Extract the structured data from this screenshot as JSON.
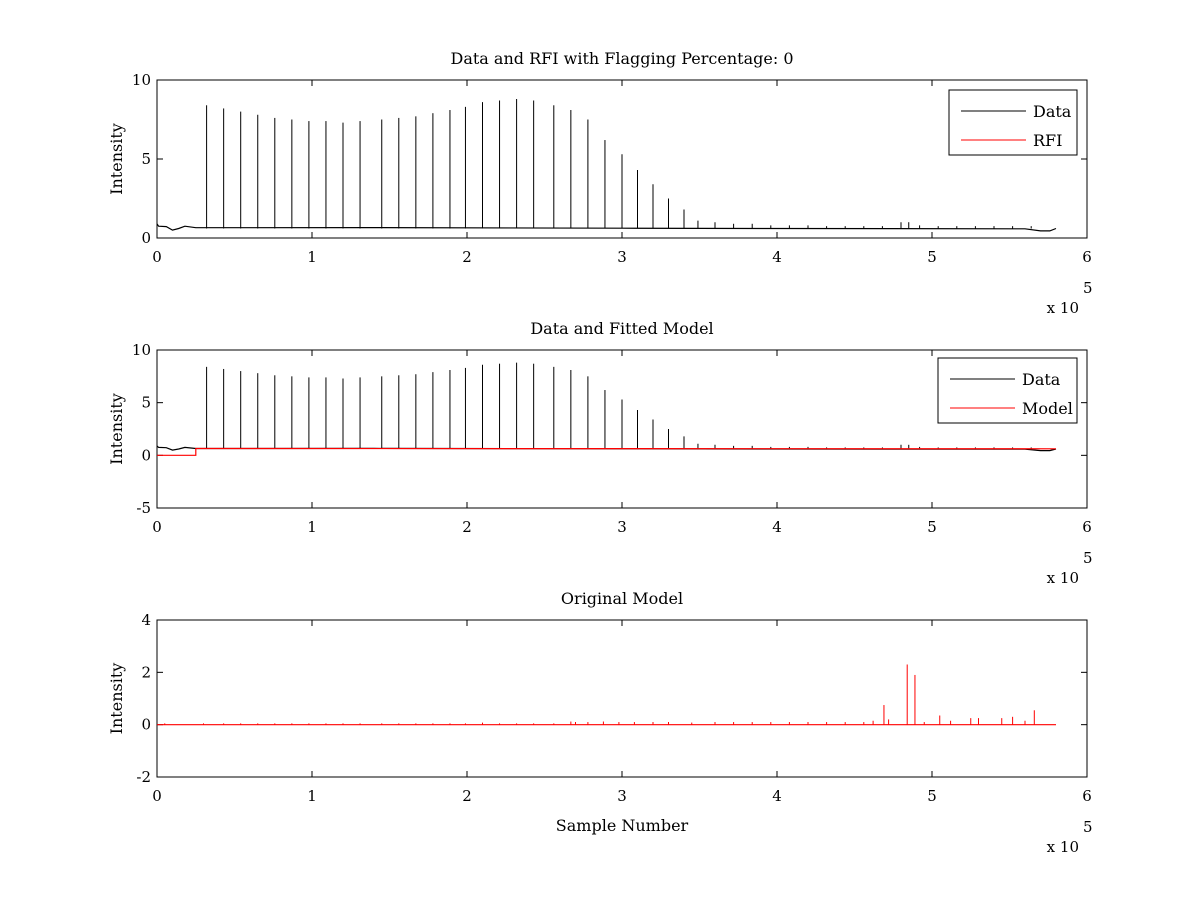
{
  "colors": {
    "background": "#ffffff",
    "axes": "#000000",
    "data_series": "#000000",
    "red_series": "#ff0000"
  },
  "chart_data": [
    {
      "type": "line",
      "title": "Data and RFI with Flagging Percentage: 0",
      "xlabel": "",
      "ylabel": "Intensity",
      "xlim": [
        0,
        6
      ],
      "ylim": [
        0,
        10
      ],
      "x_multiplier_label": "x 10",
      "x_multiplier_exponent": "5",
      "xticks": [
        0,
        1,
        2,
        3,
        4,
        5,
        6
      ],
      "xtick_labels": [
        "0",
        "1",
        "2",
        "3",
        "4",
        "5",
        "6"
      ],
      "yticks": [
        0,
        5,
        10
      ],
      "ytick_labels": [
        "0",
        "5",
        "10"
      ],
      "legend": [
        "Data",
        "RFI"
      ],
      "legend_position": "top-right",
      "baseline": 0.6,
      "baseline_points": [
        [
          0,
          0.9
        ],
        [
          0.01,
          0.75
        ],
        [
          0.06,
          0.72
        ],
        [
          0.1,
          0.5
        ],
        [
          0.14,
          0.6
        ],
        [
          0.18,
          0.75
        ],
        [
          0.25,
          0.65
        ],
        [
          0.3,
          0.65
        ],
        [
          1.4,
          0.66
        ],
        [
          3.0,
          0.62
        ],
        [
          4.0,
          0.6
        ],
        [
          5.6,
          0.58
        ],
        [
          5.7,
          0.45
        ],
        [
          5.76,
          0.45
        ],
        [
          5.8,
          0.6
        ]
      ],
      "series": [
        {
          "name": "Data",
          "color": "#000000",
          "spikes_x": [
            0.32,
            0.43,
            0.54,
            0.65,
            0.76,
            0.87,
            0.98,
            1.09,
            1.2,
            1.31,
            1.45,
            1.56,
            1.67,
            1.78,
            1.89,
            1.99,
            2.1,
            2.21,
            2.32,
            2.43,
            2.56,
            2.67,
            2.78,
            2.89,
            3.0,
            3.1,
            3.2,
            3.3,
            3.4,
            3.49,
            3.6,
            3.72,
            3.84,
            3.96,
            4.08,
            4.2,
            4.32,
            4.44,
            4.56,
            4.68,
            4.8,
            4.85,
            4.92,
            5.04,
            5.16,
            5.28,
            5.4,
            5.52,
            5.64
          ],
          "spikes_y": [
            8.4,
            8.2,
            8.0,
            7.8,
            7.6,
            7.5,
            7.4,
            7.4,
            7.3,
            7.4,
            7.5,
            7.6,
            7.7,
            7.9,
            8.1,
            8.3,
            8.6,
            8.7,
            8.8,
            8.7,
            8.4,
            8.1,
            7.5,
            6.2,
            5.3,
            4.3,
            3.4,
            2.5,
            1.8,
            1.1,
            1.0,
            0.9,
            0.9,
            0.8,
            0.8,
            0.8,
            0.75,
            0.75,
            0.75,
            0.75,
            1.0,
            1.0,
            0.8,
            0.75,
            0.75,
            0.75,
            0.75,
            0.75,
            0.75
          ]
        },
        {
          "name": "RFI",
          "color": "#ff0000",
          "values": []
        }
      ]
    },
    {
      "type": "line",
      "title": "Data and Fitted Model",
      "xlabel": "",
      "ylabel": "Intensity",
      "xlim": [
        0,
        6
      ],
      "ylim": [
        -5,
        10
      ],
      "x_multiplier_label": "x 10",
      "x_multiplier_exponent": "5",
      "xticks": [
        0,
        1,
        2,
        3,
        4,
        5,
        6
      ],
      "xtick_labels": [
        "0",
        "1",
        "2",
        "3",
        "4",
        "5",
        "6"
      ],
      "yticks": [
        -5,
        0,
        5,
        10
      ],
      "ytick_labels": [
        "-5",
        "0",
        "5",
        "10"
      ],
      "legend": [
        "Data",
        "Model"
      ],
      "legend_position": "top-right",
      "data_baseline_points": [
        [
          0,
          0.9
        ],
        [
          0.01,
          0.75
        ],
        [
          0.06,
          0.72
        ],
        [
          0.1,
          0.5
        ],
        [
          0.14,
          0.6
        ],
        [
          0.18,
          0.75
        ],
        [
          0.25,
          0.65
        ],
        [
          0.3,
          0.65
        ],
        [
          1.4,
          0.66
        ],
        [
          3.0,
          0.62
        ],
        [
          4.0,
          0.6
        ],
        [
          5.6,
          0.58
        ],
        [
          5.7,
          0.45
        ],
        [
          5.76,
          0.45
        ],
        [
          5.8,
          0.6
        ]
      ],
      "model_points": [
        [
          0,
          0.0
        ],
        [
          0.25,
          0.0
        ],
        [
          0.25,
          0.65
        ],
        [
          5.8,
          0.62
        ]
      ],
      "series": [
        {
          "name": "Data",
          "color": "#000000",
          "spikes_x": [
            0.32,
            0.43,
            0.54,
            0.65,
            0.76,
            0.87,
            0.98,
            1.09,
            1.2,
            1.31,
            1.45,
            1.56,
            1.67,
            1.78,
            1.89,
            1.99,
            2.1,
            2.21,
            2.32,
            2.43,
            2.56,
            2.67,
            2.78,
            2.89,
            3.0,
            3.1,
            3.2,
            3.3,
            3.4,
            3.49,
            3.6,
            3.72,
            3.84,
            3.96,
            4.08,
            4.2,
            4.32,
            4.44,
            4.56,
            4.68,
            4.8,
            4.85,
            4.92,
            5.04,
            5.16,
            5.28,
            5.4,
            5.52,
            5.64
          ],
          "spikes_y": [
            8.4,
            8.2,
            8.0,
            7.8,
            7.6,
            7.5,
            7.4,
            7.4,
            7.3,
            7.4,
            7.5,
            7.6,
            7.7,
            7.9,
            8.1,
            8.3,
            8.6,
            8.7,
            8.8,
            8.7,
            8.4,
            8.1,
            7.5,
            6.2,
            5.3,
            4.3,
            3.4,
            2.5,
            1.8,
            1.1,
            1.0,
            0.9,
            0.9,
            0.8,
            0.8,
            0.8,
            0.75,
            0.75,
            0.75,
            0.75,
            1.0,
            1.0,
            0.8,
            0.75,
            0.75,
            0.75,
            0.75,
            0.75,
            0.75
          ]
        },
        {
          "name": "Model",
          "color": "#ff0000"
        }
      ]
    },
    {
      "type": "line",
      "title": "Original Model",
      "xlabel": "Sample Number",
      "ylabel": "Intensity",
      "xlim": [
        0,
        6
      ],
      "ylim": [
        -2,
        4
      ],
      "x_multiplier_label": "x 10",
      "x_multiplier_exponent": "5",
      "xticks": [
        0,
        1,
        2,
        3,
        4,
        5,
        6
      ],
      "xtick_labels": [
        "0",
        "1",
        "2",
        "3",
        "4",
        "5",
        "6"
      ],
      "yticks": [
        -2,
        0,
        2,
        4
      ],
      "ytick_labels": [
        "-2",
        "0",
        "2",
        "4"
      ],
      "legend": [],
      "series": [
        {
          "name": "Original Model",
          "color": "#ff0000",
          "baseline": 0.0,
          "x_end": 5.8,
          "spikes_x": [
            0.05,
            0.3,
            0.43,
            0.54,
            0.65,
            0.76,
            0.87,
            0.98,
            1.09,
            1.2,
            1.31,
            1.45,
            1.56,
            1.67,
            1.78,
            1.89,
            1.99,
            2.1,
            2.21,
            2.32,
            2.43,
            2.56,
            2.67,
            2.7,
            2.78,
            2.88,
            2.98,
            3.08,
            3.2,
            3.3,
            3.45,
            3.6,
            3.72,
            3.84,
            3.96,
            4.08,
            4.2,
            4.32,
            4.44,
            4.56,
            4.62,
            4.69,
            4.72,
            4.84,
            4.89,
            4.95,
            5.05,
            5.12,
            5.25,
            5.3,
            5.45,
            5.52,
            5.6,
            5.66
          ],
          "spikes_y": [
            0.05,
            0.05,
            0.05,
            0.05,
            0.05,
            0.05,
            0.05,
            0.05,
            0.05,
            0.05,
            0.05,
            0.05,
            0.05,
            0.05,
            0.05,
            0.05,
            0.05,
            0.08,
            0.05,
            0.05,
            0.05,
            0.05,
            0.12,
            0.1,
            0.1,
            0.12,
            0.1,
            0.1,
            0.1,
            0.1,
            0.08,
            0.1,
            0.1,
            0.1,
            0.1,
            0.1,
            0.1,
            0.1,
            0.1,
            0.1,
            0.15,
            0.75,
            0.2,
            2.3,
            1.9,
            0.1,
            0.35,
            0.15,
            0.25,
            0.25,
            0.25,
            0.3,
            0.15,
            0.55
          ]
        }
      ]
    }
  ]
}
